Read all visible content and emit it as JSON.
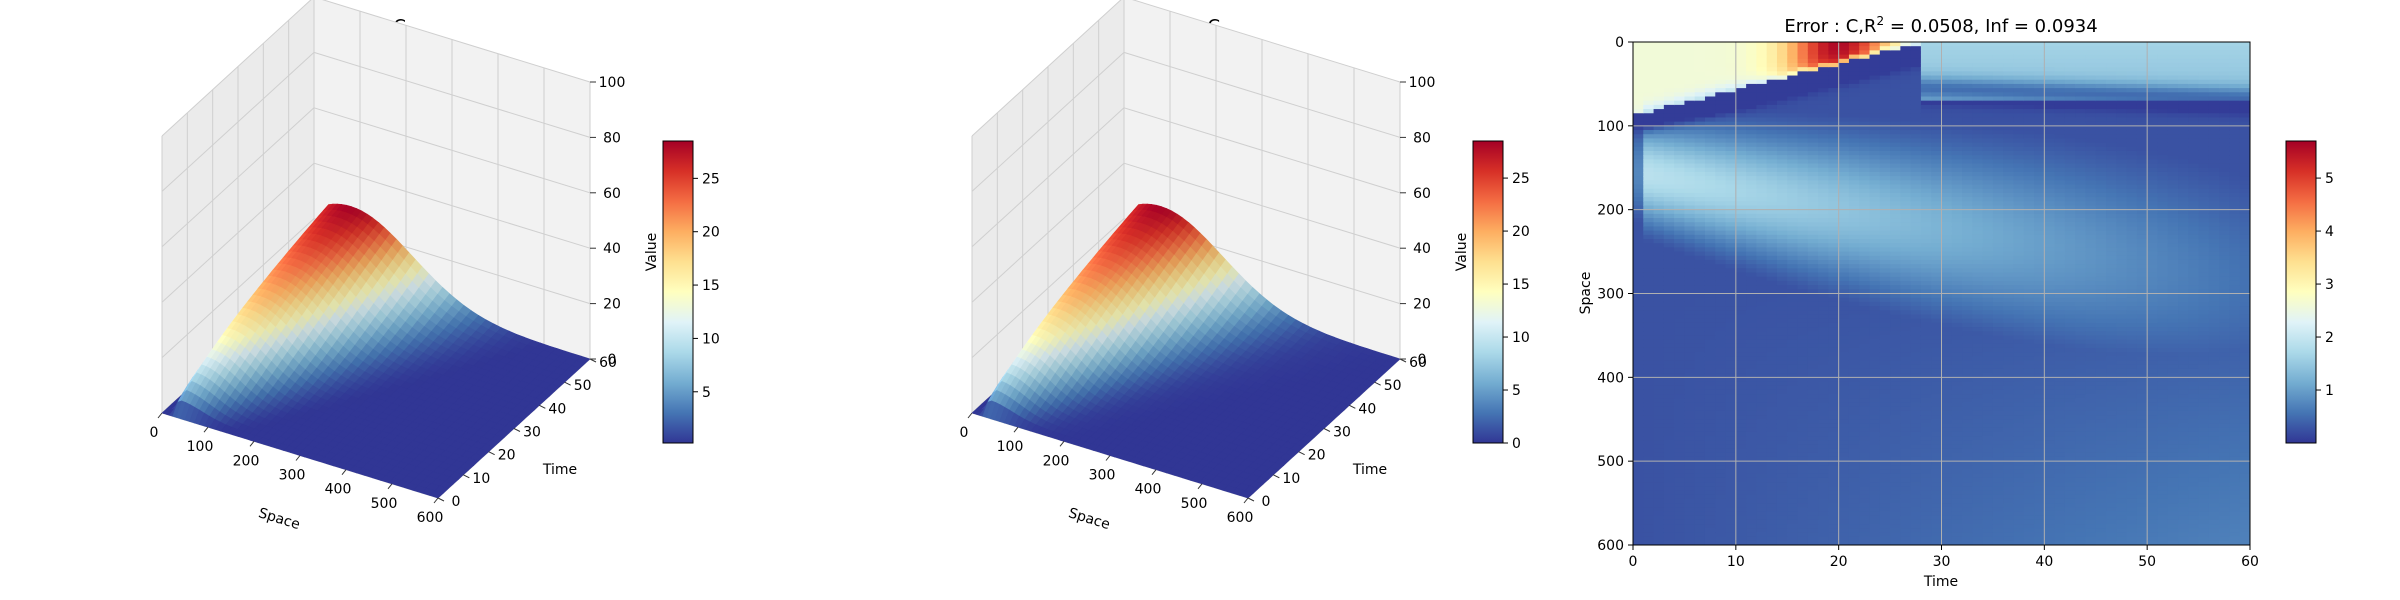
{
  "colormap": [
    "#313695",
    "#4575b4",
    "#74add1",
    "#abd9e9",
    "#e0f3f8",
    "#ffffbf",
    "#fee090",
    "#fdae61",
    "#f46d43",
    "#d73027",
    "#a50026"
  ],
  "chart_data": [
    {
      "type": "surface3d",
      "title": "Net: C",
      "xlabel": "Space",
      "ylabel": "Time",
      "zlabel": "Value",
      "xlim": [
        0,
        600
      ],
      "ylim": [
        0,
        60
      ],
      "zlim": [
        0,
        100
      ],
      "xticks": [
        "0",
        "100",
        "200",
        "300",
        "400",
        "500",
        "600"
      ],
      "yticks": [
        "0",
        "10",
        "20",
        "30",
        "40",
        "50",
        "60"
      ],
      "zticks": [
        "0",
        "20",
        "40",
        "60",
        "80",
        "100"
      ],
      "colorbar_range": [
        0.2,
        28.5
      ],
      "colorbar_ticks": [
        "5",
        "10",
        "15",
        "20",
        "25"
      ],
      "value_max": 28.5,
      "peak_space": 75,
      "peak_time": 60
    },
    {
      "type": "surface3d",
      "title": "FDM: C",
      "xlabel": "Space",
      "ylabel": "Time",
      "zlabel": "Value",
      "xlim": [
        0,
        600
      ],
      "ylim": [
        0,
        60
      ],
      "zlim": [
        0,
        100
      ],
      "xticks": [
        "0",
        "100",
        "200",
        "300",
        "400",
        "500",
        "600"
      ],
      "yticks": [
        "0",
        "10",
        "20",
        "30",
        "40",
        "50",
        "60"
      ],
      "zticks": [
        "0",
        "20",
        "40",
        "60",
        "80",
        "100"
      ],
      "colorbar_range": [
        0,
        28.5
      ],
      "colorbar_ticks": [
        "0",
        "5",
        "10",
        "15",
        "20",
        "25"
      ],
      "value_max": 28.5,
      "peak_space": 75,
      "peak_time": 60
    },
    {
      "type": "heatmap",
      "title_prefix": "Error : C,R",
      "title_sup": "2",
      "title_suffix": " = 0.0508, Inf = 0.0934",
      "xlabel": "Time",
      "ylabel": "Space",
      "xlim": [
        0,
        60
      ],
      "ylim": [
        600,
        0
      ],
      "xticks": [
        "0",
        "10",
        "20",
        "30",
        "40",
        "50",
        "60"
      ],
      "yticks": [
        "0",
        "100",
        "200",
        "300",
        "400",
        "500",
        "600"
      ],
      "grid": true,
      "colorbar_range": [
        0,
        5.7
      ],
      "colorbar_ticks": [
        "1",
        "2",
        "3",
        "4",
        "5"
      ],
      "max_error": 5.7
    }
  ]
}
